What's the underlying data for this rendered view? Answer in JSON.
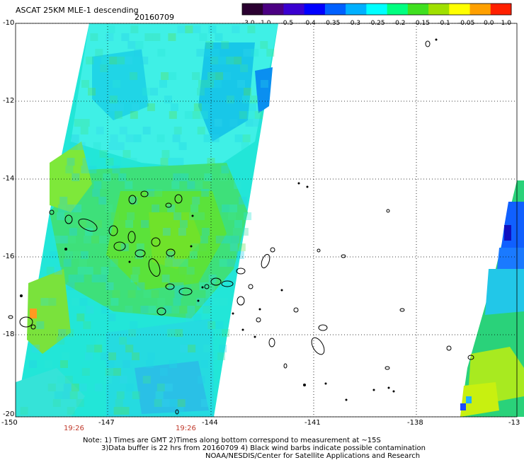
{
  "title": "ASCAT 25KM MLE-1 descending",
  "date": "20160709",
  "colorbar": {
    "labels": [
      "-3.0",
      "-1.0",
      "-0.5",
      "-0.4",
      "-0.35",
      "-0.3",
      "-0.25",
      "-0.2",
      "-0.15",
      "-0.1",
      "-0.05",
      "0.0",
      "1.0"
    ],
    "colors": [
      "#2a0030",
      "#4b0082",
      "#3a00d0",
      "#0000ff",
      "#0060ff",
      "#00b0ff",
      "#00ffff",
      "#00ff80",
      "#40e020",
      "#a0e000",
      "#ffff00",
      "#ffa000",
      "#ff2000"
    ]
  },
  "axes": {
    "y_labels": [
      "-10",
      "-12",
      "-14",
      "-16",
      "-18",
      "-20"
    ],
    "x_labels": [
      "-150",
      "-147",
      "-144",
      "-141",
      "-138",
      "-13"
    ],
    "time_labels": [
      "19:26",
      "19:26"
    ]
  },
  "notes": {
    "line1": "Note: 1) Times are GMT 2)Times along bottom correspond to measurement at ~15S",
    "line2": "3)Data buffer is 22 hrs from 20160709 4) Black wind barbs indicate possible contamination",
    "line3": "NOAA/NESDIS/Center for Satellite Applications and Research"
  }
}
